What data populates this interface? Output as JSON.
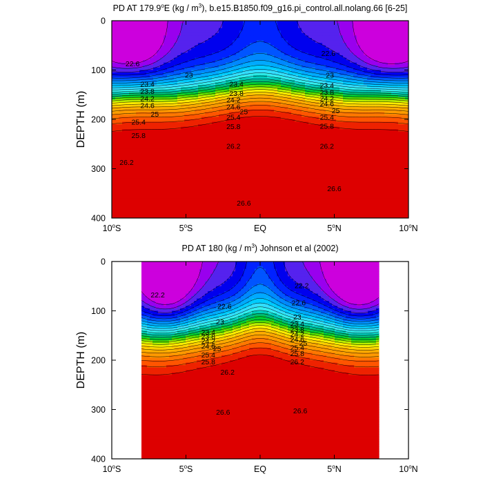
{
  "chart_data": [
    {
      "type": "heatmap",
      "subtype": "filled-contour",
      "title_main": "PD AT 179.9",
      "title_deg": "o",
      "title_tail": "E (kg / m",
      "title_pow": "3",
      "title_rest": "), b.e15.B1850.f09_g16.pi_control.all.nolang.66 [6-25]",
      "ylabel": "DEPTH (m)",
      "xlim": [
        -10,
        10
      ],
      "ylim": [
        400,
        0
      ],
      "x_ticks": [
        {
          "value": -10,
          "num": "10",
          "deg": "o",
          "hem": "S"
        },
        {
          "value": -5,
          "num": "5",
          "deg": "o",
          "hem": "S"
        },
        {
          "value": 0,
          "num": "EQ",
          "deg": "",
          "hem": ""
        },
        {
          "value": 5,
          "num": "5",
          "deg": "o",
          "hem": "N"
        },
        {
          "value": 10,
          "num": "10",
          "deg": "o",
          "hem": "N"
        }
      ],
      "y_ticks": [
        "0",
        "100",
        "200",
        "300",
        "400"
      ],
      "y_tick_values": [
        0,
        100,
        200,
        300,
        400
      ],
      "data_extent": [
        -10,
        10
      ],
      "levels": [
        22.2,
        22.4,
        22.6,
        22.8,
        23.0,
        23.2,
        23.4,
        23.6,
        23.8,
        24.0,
        24.2,
        24.4,
        24.6,
        24.8,
        25.0,
        25.2,
        25.4,
        25.6,
        25.8,
        26.0,
        26.2,
        26.4,
        26.6
      ],
      "contour_labels": [
        {
          "text": "22.6",
          "x": -8.6,
          "y": 87
        },
        {
          "text": "22.6",
          "x": 4.6,
          "y": 66
        },
        {
          "text": "23",
          "x": -4.8,
          "y": 110
        },
        {
          "text": "23",
          "x": 4.7,
          "y": 110
        },
        {
          "text": "23.4",
          "x": -7.6,
          "y": 128
        },
        {
          "text": "23.4",
          "x": -1.6,
          "y": 128
        },
        {
          "text": "23.4",
          "x": 4.5,
          "y": 131
        },
        {
          "text": "23.8",
          "x": -7.6,
          "y": 143
        },
        {
          "text": "23.8",
          "x": -1.6,
          "y": 147
        },
        {
          "text": "23.8",
          "x": 4.5,
          "y": 145
        },
        {
          "text": "24.2",
          "x": -7.6,
          "y": 157
        },
        {
          "text": "24.2",
          "x": -1.8,
          "y": 160
        },
        {
          "text": "24.2",
          "x": 4.5,
          "y": 157
        },
        {
          "text": "24.6",
          "x": -7.6,
          "y": 171
        },
        {
          "text": "24.6",
          "x": -1.8,
          "y": 174
        },
        {
          "text": "24.6",
          "x": 4.5,
          "y": 168
        },
        {
          "text": "25",
          "x": -7.1,
          "y": 189
        },
        {
          "text": "25",
          "x": -1.1,
          "y": 184
        },
        {
          "text": "25",
          "x": 5.1,
          "y": 182
        },
        {
          "text": "25.4",
          "x": -8.2,
          "y": 205
        },
        {
          "text": "25.4",
          "x": -1.8,
          "y": 195
        },
        {
          "text": "25.4",
          "x": 4.5,
          "y": 195
        },
        {
          "text": "25.8",
          "x": -8.2,
          "y": 232
        },
        {
          "text": "25.8",
          "x": -1.8,
          "y": 214
        },
        {
          "text": "25.8",
          "x": 4.5,
          "y": 213
        },
        {
          "text": "26.2",
          "x": -9.0,
          "y": 287
        },
        {
          "text": "26.2",
          "x": -1.8,
          "y": 254
        },
        {
          "text": "26.2",
          "x": 4.5,
          "y": 254
        },
        {
          "text": "26.6",
          "x": -1.1,
          "y": 369
        },
        {
          "text": "26.6",
          "x": 5.0,
          "y": 340
        }
      ]
    },
    {
      "type": "heatmap",
      "subtype": "filled-contour",
      "title_main": "PD AT 180 (kg / m",
      "title_deg": "",
      "title_tail": "",
      "title_pow": "3",
      "title_rest": ") Johnson et al (2002)",
      "ylabel": "DEPTH (m)",
      "xlim": [
        -10,
        10
      ],
      "ylim": [
        400,
        0
      ],
      "x_ticks": [
        {
          "value": -10,
          "num": "10",
          "deg": "o",
          "hem": "S"
        },
        {
          "value": -5,
          "num": "5",
          "deg": "o",
          "hem": "S"
        },
        {
          "value": 0,
          "num": "EQ",
          "deg": "",
          "hem": ""
        },
        {
          "value": 5,
          "num": "5",
          "deg": "o",
          "hem": "N"
        },
        {
          "value": 10,
          "num": "10",
          "deg": "o",
          "hem": "N"
        }
      ],
      "y_ticks": [
        "0",
        "100",
        "200",
        "300",
        "400"
      ],
      "y_tick_values": [
        0,
        100,
        200,
        300,
        400
      ],
      "data_extent": [
        -8,
        8
      ],
      "levels": [
        22.2,
        22.4,
        22.6,
        22.8,
        23.0,
        23.2,
        23.4,
        23.6,
        23.8,
        24.0,
        24.2,
        24.4,
        24.6,
        24.8,
        25.0,
        25.2,
        25.4,
        25.6,
        25.8,
        26.0,
        26.2,
        26.4,
        26.6
      ],
      "contour_labels": [
        {
          "text": "22.2",
          "x": -6.9,
          "y": 67
        },
        {
          "text": "22.2",
          "x": 2.8,
          "y": 48
        },
        {
          "text": "22.6",
          "x": -2.4,
          "y": 90
        },
        {
          "text": "22.6",
          "x": 2.6,
          "y": 83
        },
        {
          "text": "23",
          "x": -2.7,
          "y": 122
        },
        {
          "text": "23",
          "x": 2.5,
          "y": 112
        },
        {
          "text": "23.4",
          "x": -3.5,
          "y": 143
        },
        {
          "text": "23.4",
          "x": 2.5,
          "y": 126
        },
        {
          "text": "23.8",
          "x": -3.5,
          "y": 152
        },
        {
          "text": "23.8",
          "x": 2.5,
          "y": 137
        },
        {
          "text": "24.2",
          "x": -3.5,
          "y": 161
        },
        {
          "text": "24.2",
          "x": 2.5,
          "y": 147
        },
        {
          "text": "24.6",
          "x": -3.5,
          "y": 171
        },
        {
          "text": "24.6",
          "x": 2.5,
          "y": 157
        },
        {
          "text": "25",
          "x": -2.9,
          "y": 176
        },
        {
          "text": "25",
          "x": 2.9,
          "y": 165
        },
        {
          "text": "25.4",
          "x": -3.5,
          "y": 189
        },
        {
          "text": "25.4",
          "x": 2.5,
          "y": 174
        },
        {
          "text": "25.8",
          "x": -3.5,
          "y": 203
        },
        {
          "text": "25.8",
          "x": 2.5,
          "y": 186
        },
        {
          "text": "26.2",
          "x": -2.2,
          "y": 224
        },
        {
          "text": "26.2",
          "x": 2.5,
          "y": 203
        },
        {
          "text": "26.6",
          "x": -2.5,
          "y": 305
        },
        {
          "text": "26.6",
          "x": 2.7,
          "y": 302
        }
      ]
    }
  ]
}
